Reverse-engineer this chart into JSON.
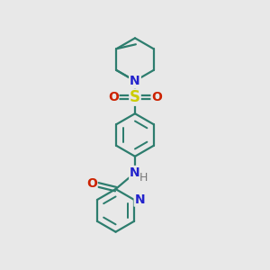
{
  "bg_color": "#e8e8e8",
  "bond_color": "#2d7d6e",
  "n_color": "#2222cc",
  "o_color": "#cc2200",
  "s_color": "#cccc00",
  "h_color": "#777777",
  "line_width": 1.6,
  "font_size": 10,
  "figsize": [
    3.0,
    3.0
  ],
  "dpi": 100,
  "xlim": [
    -2.5,
    2.5
  ],
  "ylim": [
    -4.5,
    4.5
  ]
}
